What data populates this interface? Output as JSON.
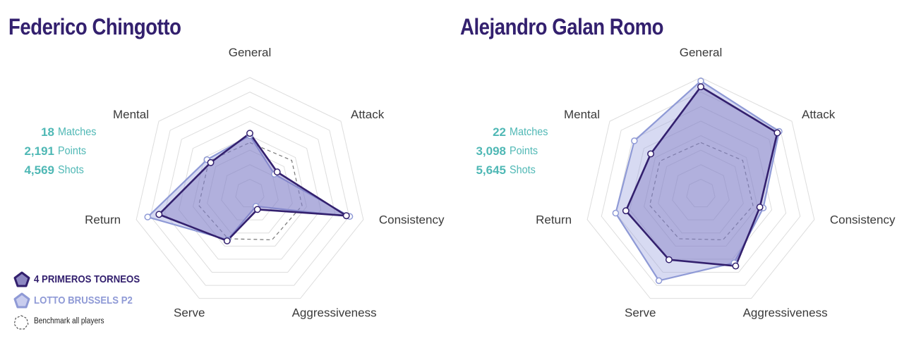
{
  "chart_data": [
    {
      "type": "radar",
      "title": "Federico Chingotto",
      "axes": [
        "General",
        "Attack",
        "Consistency",
        "Aggressiveness",
        "Serve",
        "Return",
        "Mental"
      ],
      "series": [
        {
          "name": "4 PRIMEROS TORNEOS",
          "values": [
            0.52,
            0.3,
            0.85,
            0.15,
            0.45,
            0.8,
            0.43
          ]
        },
        {
          "name": "LOTTO BRUSSELS P2",
          "values": [
            0.5,
            0.27,
            0.88,
            0.12,
            0.44,
            0.9,
            0.47
          ]
        },
        {
          "name": "Benchmark all players",
          "values": [
            0.44,
            0.46,
            0.46,
            0.44,
            0.43,
            0.45,
            0.45
          ]
        }
      ],
      "stats": [
        {
          "value": "18",
          "label": "Matches"
        },
        {
          "value": "2,191",
          "label": "Points"
        },
        {
          "value": "4,569",
          "label": "Shots"
        }
      ]
    },
    {
      "type": "radar",
      "title": "Alejandro Galan Romo",
      "axes": [
        "General",
        "Attack",
        "Consistency",
        "Aggressiveness",
        "Serve",
        "Return",
        "Mental"
      ],
      "series": [
        {
          "name": "4 PRIMEROS TORNEOS",
          "values": [
            0.92,
            0.84,
            0.52,
            0.69,
            0.63,
            0.66,
            0.55
          ]
        },
        {
          "name": "LOTTO BRUSSELS P2",
          "values": [
            0.97,
            0.86,
            0.55,
            0.66,
            0.83,
            0.75,
            0.73
          ]
        },
        {
          "name": "Benchmark all players",
          "values": [
            0.44,
            0.46,
            0.46,
            0.44,
            0.43,
            0.45,
            0.45
          ]
        }
      ],
      "stats": [
        {
          "value": "22",
          "label": "Matches"
        },
        {
          "value": "3,098",
          "label": "Points"
        },
        {
          "value": "5,645",
          "label": "Shots"
        }
      ]
    }
  ],
  "legend": [
    {
      "label": "4 PRIMEROS TORNEOS"
    },
    {
      "label": "LOTTO BRUSSELS P2"
    },
    {
      "label": "Benchmark all players"
    }
  ],
  "colors": {
    "title": "#33206e",
    "series_primary": "#33206e",
    "series_secondary": "#8f9ad6",
    "benchmark": "#777777",
    "stats": "#4fb8b5",
    "grid": "#dddddd"
  }
}
